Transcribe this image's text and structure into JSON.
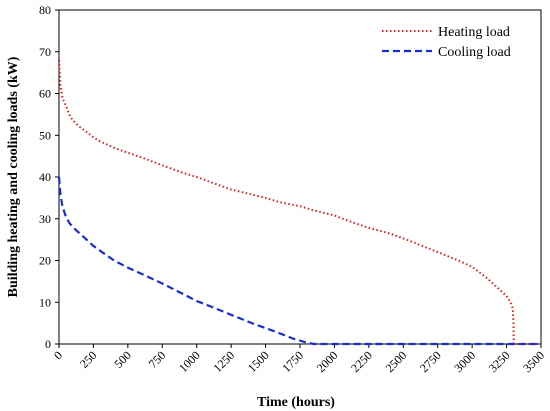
{
  "chart_data": {
    "type": "line",
    "title": "",
    "xlabel": "Time (hours)",
    "ylabel": "Building heating and cooling loads (kW)",
    "xlim": [
      0,
      3500
    ],
    "ylim": [
      0,
      80
    ],
    "xticks": [
      0,
      250,
      500,
      750,
      1000,
      1250,
      1500,
      1750,
      2000,
      2250,
      2500,
      2750,
      3000,
      3250,
      3500
    ],
    "yticks": [
      0,
      10,
      20,
      30,
      40,
      50,
      60,
      70,
      80
    ],
    "grid": false,
    "legend_position": "top-right",
    "series": [
      {
        "name": "Heating load",
        "color": "#e41a1c",
        "style": "dotted",
        "points": [
          [
            0,
            68
          ],
          [
            10,
            62
          ],
          [
            25,
            59
          ],
          [
            50,
            57
          ],
          [
            75,
            55
          ],
          [
            100,
            53.5
          ],
          [
            150,
            52
          ],
          [
            200,
            50.8
          ],
          [
            250,
            49.5
          ],
          [
            300,
            48.5
          ],
          [
            400,
            47
          ],
          [
            500,
            45.8
          ],
          [
            600,
            44.7
          ],
          [
            750,
            42.8
          ],
          [
            900,
            41
          ],
          [
            1000,
            40
          ],
          [
            1100,
            38.8
          ],
          [
            1250,
            37
          ],
          [
            1400,
            35.8
          ],
          [
            1500,
            35
          ],
          [
            1600,
            34
          ],
          [
            1750,
            33
          ],
          [
            1850,
            32
          ],
          [
            2000,
            30.8
          ],
          [
            2100,
            29.5
          ],
          [
            2250,
            27.8
          ],
          [
            2400,
            26.5
          ],
          [
            2500,
            25.3
          ],
          [
            2600,
            24
          ],
          [
            2750,
            22
          ],
          [
            2900,
            20
          ],
          [
            3000,
            18.5
          ],
          [
            3100,
            16
          ],
          [
            3200,
            13
          ],
          [
            3250,
            11.5
          ],
          [
            3280,
            10
          ],
          [
            3295,
            8.5
          ],
          [
            3300,
            5
          ],
          [
            3302,
            0
          ],
          [
            3500,
            0
          ]
        ]
      },
      {
        "name": "Cooling load",
        "color": "#1a2bd6",
        "style": "dashed",
        "points": [
          [
            0,
            40
          ],
          [
            10,
            36
          ],
          [
            25,
            33
          ],
          [
            50,
            30.5
          ],
          [
            75,
            29
          ],
          [
            100,
            28
          ],
          [
            150,
            26.5
          ],
          [
            200,
            25
          ],
          [
            250,
            23.5
          ],
          [
            300,
            22.3
          ],
          [
            400,
            20
          ],
          [
            500,
            18.3
          ],
          [
            600,
            16.8
          ],
          [
            750,
            14.5
          ],
          [
            900,
            12
          ],
          [
            1000,
            10.3
          ],
          [
            1100,
            9
          ],
          [
            1250,
            7
          ],
          [
            1400,
            5
          ],
          [
            1500,
            3.8
          ],
          [
            1600,
            2.6
          ],
          [
            1700,
            1.3
          ],
          [
            1800,
            0.3
          ],
          [
            1850,
            0
          ],
          [
            2000,
            0
          ],
          [
            2500,
            0
          ],
          [
            3000,
            0
          ],
          [
            3500,
            0
          ]
        ]
      }
    ]
  }
}
